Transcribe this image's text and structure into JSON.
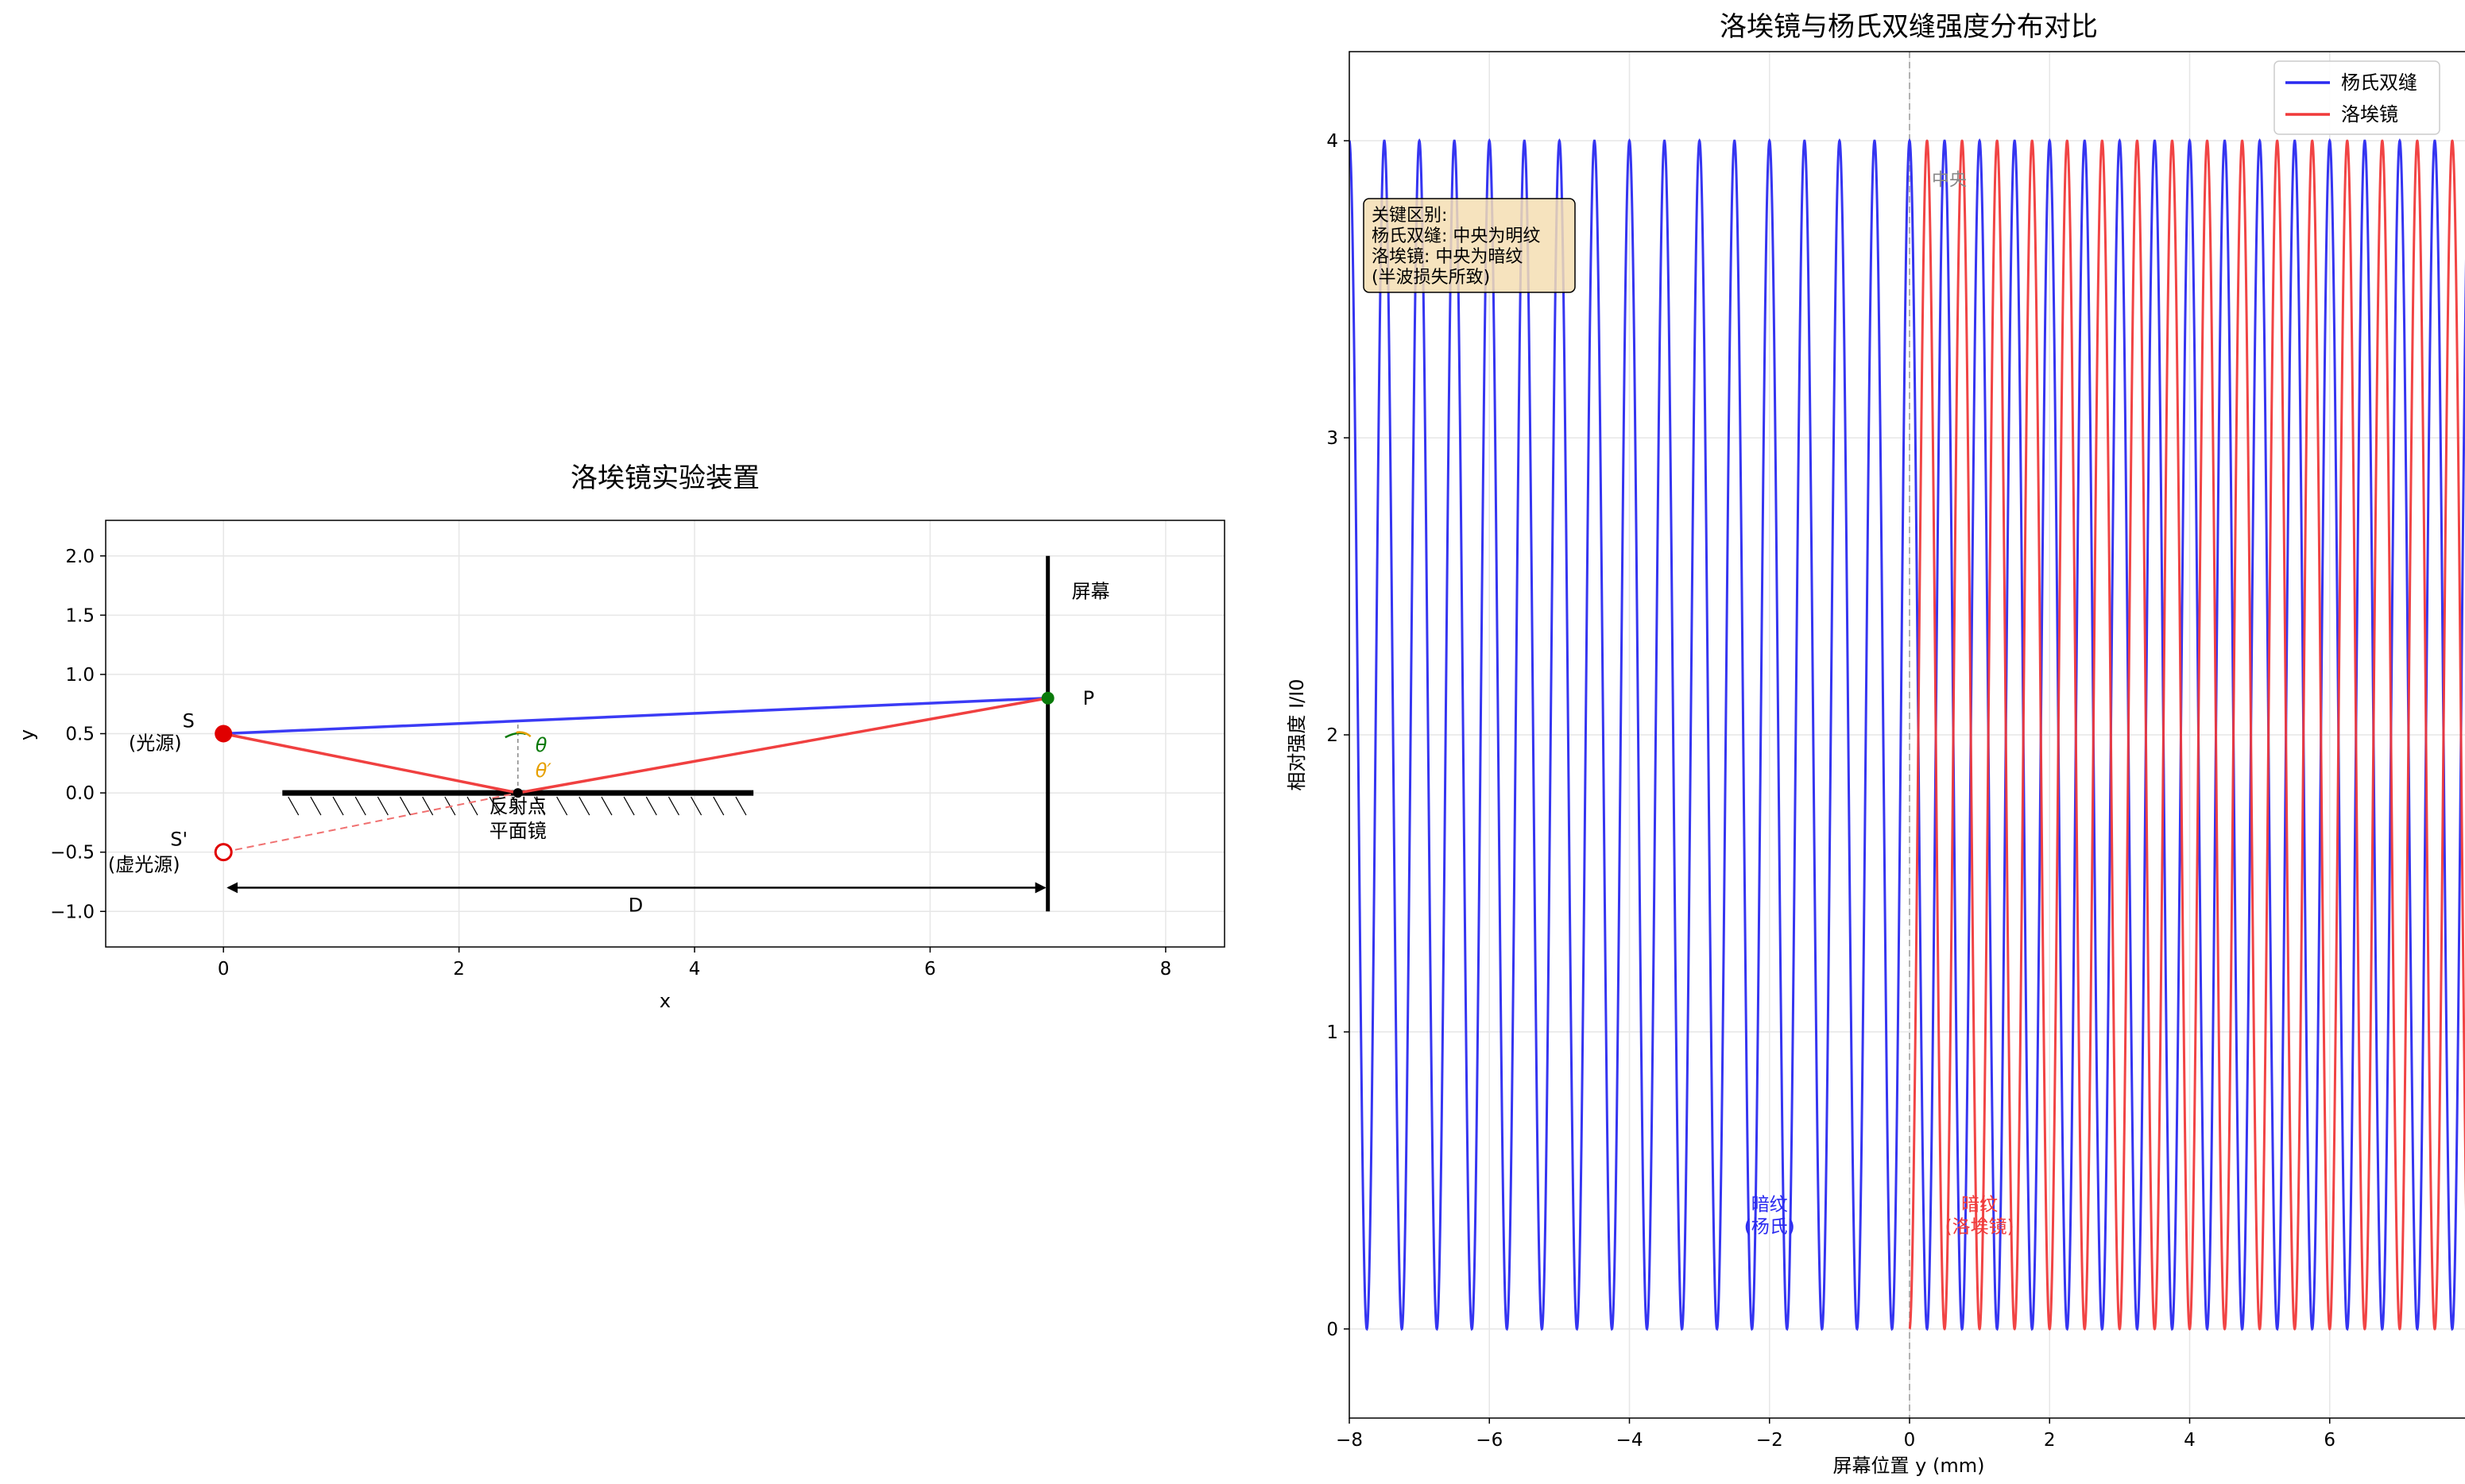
{
  "chart_data": [
    {
      "type": "line",
      "title": "洛埃镜实验装置",
      "xlabel": "x",
      "ylabel": "y",
      "xlim": [
        -1,
        8.5
      ],
      "ylim": [
        -1.3,
        2.3
      ],
      "xticks": [
        0,
        2,
        4,
        6,
        8
      ],
      "yticks": [
        2.0,
        1.5,
        1.0,
        0.5,
        0.0,
        -0.5,
        -1.0
      ],
      "xtick_labels": [
        "0",
        "2",
        "4",
        "6",
        "8"
      ],
      "ytick_labels": [
        "2.0",
        "1.5",
        "1.0",
        "0.5",
        "0.0",
        "−0.5",
        "−1.0"
      ],
      "grid": true,
      "series": [
        {
          "role": "direct-ray",
          "x": [
            0,
            7
          ],
          "y": [
            0.5,
            0.8
          ],
          "color": "#3b3bf5"
        },
        {
          "role": "reflected-ray",
          "x": [
            0,
            2.5,
            7
          ],
          "y": [
            0.5,
            0,
            0.8
          ],
          "color": "#f04040"
        },
        {
          "role": "virtual-ray",
          "x": [
            0,
            2.5
          ],
          "y": [
            -0.5,
            0
          ],
          "color": "#f07070",
          "style": "dashed"
        }
      ],
      "mirror": {
        "x": [
          0.5,
          4.5
        ],
        "y": 0
      },
      "screen": {
        "x": 7,
        "y": [
          -1.0,
          2.0
        ]
      },
      "points": {
        "source": {
          "x": 0,
          "y": 0.5,
          "color": "#e00000"
        },
        "virtual_source": {
          "x": 0,
          "y": -0.5,
          "color": "#e00000"
        },
        "reflection": {
          "x": 2.5,
          "y": 0
        },
        "observation": {
          "x": 7,
          "y": 0.8,
          "color": "#0a7a0a"
        }
      },
      "distance_arrow": {
        "x": [
          0,
          7
        ],
        "y": -0.8
      },
      "annotations": {
        "source_label": "S",
        "source_sub": "(光源)",
        "virtual_label": "S'",
        "virtual_sub": "(虚光源)",
        "reflect_label": "反射点",
        "mirror_label": "平面镜",
        "screen_label": "屏幕",
        "p_label": "P",
        "d_label": "D",
        "theta": "θ",
        "theta_prime": "θ′",
        "theta_color": "#0a7a0a",
        "theta_prime_color": "#e6a000"
      }
    },
    {
      "type": "line",
      "title": "洛埃镜与杨氏双缝强度分布对比",
      "xlabel": "屏幕位置 y (mm)",
      "ylabel": "相对强度 I/I0",
      "xlim": [
        -8,
        8
      ],
      "ylim": [
        -0.3,
        4.3
      ],
      "xticks": [
        -8,
        -6,
        -4,
        -2,
        0,
        2,
        4,
        6,
        8
      ],
      "yticks": [
        0,
        1,
        2,
        3,
        4
      ],
      "xtick_labels": [
        "−8",
        "−6",
        "−4",
        "−2",
        "0",
        "2",
        "4",
        "6",
        "8"
      ],
      "ytick_labels": [
        "0",
        "1",
        "2",
        "3",
        "4"
      ],
      "grid": true,
      "legend": "top-right",
      "series": [
        {
          "name": "杨氏双缝",
          "color": "#2a2af0",
          "formula": "4cos^2(pi*y/period)",
          "y_range": [
            -8,
            8
          ],
          "period_mm": 0.5
        },
        {
          "name": "洛埃镜",
          "color": "#f03a3a",
          "formula": "4sin^2(pi*y/period)",
          "y_range": [
            0,
            8
          ],
          "period_mm": 0.5
        }
      ],
      "annotations": {
        "info_box": [
          "关键区别:",
          "杨氏双缝: 中央为明纹",
          "洛埃镜: 中央为暗纹",
          "(半波损失所致)"
        ],
        "center_label": "中央",
        "young_dark": [
          "暗纹",
          "(杨氏)"
        ],
        "lloyd_dark": [
          "暗纹",
          "(洛埃镜)"
        ],
        "young_color": "#2a2af0",
        "lloyd_color": "#f03a3a",
        "box_fill": "#f5deb3"
      }
    }
  ]
}
